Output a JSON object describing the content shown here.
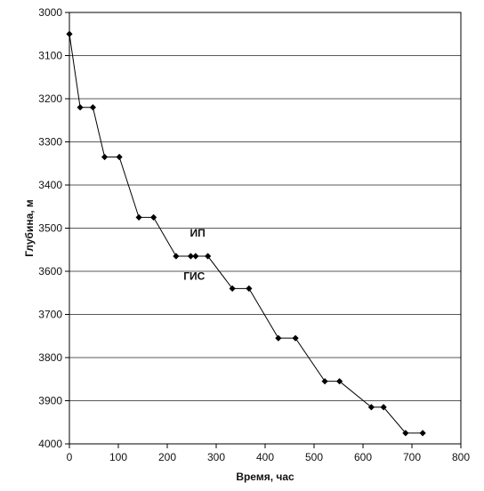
{
  "chart_data": {
    "type": "line",
    "title": "",
    "xlabel": "Время, час",
    "ylabel": "Глубина, м",
    "xlim": [
      0,
      800
    ],
    "ylim": [
      3000,
      4000
    ],
    "y_inverted": true,
    "x_ticks": [
      "0",
      "100",
      "200",
      "300",
      "400",
      "500",
      "600",
      "700",
      "800"
    ],
    "y_ticks": [
      "3000",
      "3100",
      "3200",
      "3300",
      "3400",
      "3500",
      "3600",
      "3700",
      "3800",
      "3900",
      "4000"
    ],
    "grid": "horizontal",
    "marker": "diamond",
    "series": [
      {
        "x": [
          0,
          22,
          48,
          72,
          102,
          142,
          172,
          218,
          248,
          258,
          283,
          333,
          367,
          427,
          462,
          522,
          552,
          617,
          642,
          687,
          722
        ],
        "y": [
          3050,
          3220,
          3220,
          3335,
          3335,
          3475,
          3475,
          3565,
          3565,
          3565,
          3565,
          3640,
          3640,
          3755,
          3755,
          3855,
          3855,
          3915,
          3915,
          3975,
          3975
        ]
      }
    ],
    "annotations": [
      {
        "text": "ИП",
        "x": 262,
        "y": 3520
      },
      {
        "text": "ГИС",
        "x": 255,
        "y": 3620
      }
    ]
  },
  "colors": {
    "line": "#000000",
    "grid": "#222222",
    "background": "#ffffff"
  }
}
